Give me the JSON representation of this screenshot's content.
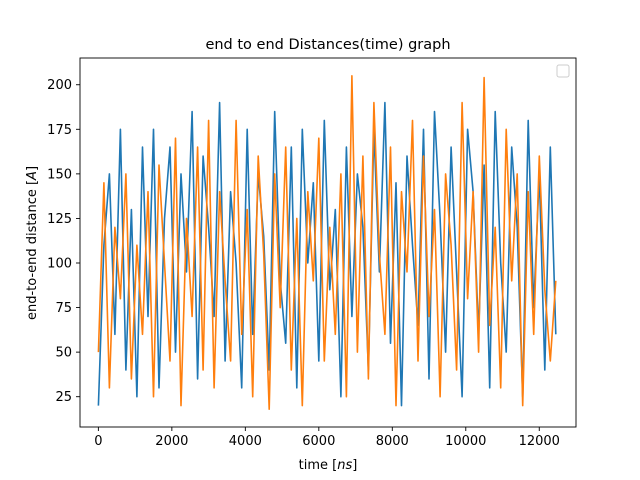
{
  "chart_data": {
    "type": "line",
    "title": "end to end Distances(time) graph",
    "xlabel_text": "time [",
    "xlabel_unit": "ns",
    "xlabel_close": "]",
    "ylabel_text": "end-to-end distance [",
    "ylabel_unit": "A",
    "ylabel_close": "]",
    "xlim": [
      -500,
      13000
    ],
    "ylim": [
      8,
      215
    ],
    "xticks": [
      0,
      2000,
      4000,
      6000,
      8000,
      10000,
      12000
    ],
    "xtick_labels": [
      "0",
      "2000",
      "4000",
      "6000",
      "8000",
      "10000",
      "12000"
    ],
    "yticks": [
      25,
      50,
      75,
      100,
      125,
      150,
      175,
      200
    ],
    "ytick_labels": [
      "25",
      "50",
      "75",
      "100",
      "125",
      "150",
      "175",
      "200"
    ],
    "grid": false,
    "legend": "top-right (empty)",
    "series": [
      {
        "color": "#1f77b4",
        "x": [
          0,
          150,
          300,
          450,
          600,
          750,
          900,
          1050,
          1200,
          1350,
          1500,
          1650,
          1800,
          1950,
          2100,
          2250,
          2400,
          2550,
          2700,
          2850,
          3000,
          3150,
          3300,
          3450,
          3600,
          3750,
          3900,
          4050,
          4200,
          4350,
          4500,
          4650,
          4800,
          4950,
          5100,
          5250,
          5400,
          5550,
          5700,
          5850,
          6000,
          6150,
          6300,
          6450,
          6600,
          6750,
          6900,
          7050,
          7200,
          7350,
          7500,
          7650,
          7800,
          7950,
          8100,
          8250,
          8400,
          8550,
          8700,
          8850,
          9000,
          9150,
          9300,
          9450,
          9600,
          9750,
          9900,
          10050,
          10200,
          10350,
          10500,
          10650,
          10800,
          10950,
          11100,
          11250,
          11400,
          11550,
          11700,
          11850,
          12000,
          12150,
          12300,
          12450
        ],
        "y": [
          20,
          110,
          150,
          60,
          175,
          40,
          130,
          25,
          165,
          70,
          175,
          30,
          125,
          165,
          50,
          150,
          95,
          185,
          35,
          160,
          120,
          70,
          190,
          45,
          140,
          100,
          30,
          175,
          60,
          150,
          115,
          40,
          185,
          90,
          55,
          165,
          30,
          175,
          100,
          145,
          45,
          180,
          85,
          130,
          25,
          165,
          70,
          150,
          120,
          40,
          175,
          95,
          190,
          55,
          145,
          20,
          160,
          110,
          65,
          175,
          35,
          185,
          125,
          50,
          165,
          95,
          25,
          175,
          140,
          60,
          155,
          30,
          185,
          100,
          50,
          165,
          120,
          25,
          180,
          75,
          150,
          40,
          165,
          60
        ]
      },
      {
        "color": "#ff7f0e",
        "x": [
          0,
          150,
          300,
          450,
          600,
          750,
          900,
          1050,
          1200,
          1350,
          1500,
          1650,
          1800,
          1950,
          2100,
          2250,
          2400,
          2550,
          2700,
          2850,
          3000,
          3150,
          3300,
          3450,
          3600,
          3750,
          3900,
          4050,
          4200,
          4350,
          4500,
          4650,
          4800,
          4950,
          5100,
          5250,
          5400,
          5550,
          5700,
          5850,
          6000,
          6150,
          6300,
          6450,
          6600,
          6750,
          6900,
          7050,
          7200,
          7350,
          7500,
          7650,
          7800,
          7950,
          8100,
          8250,
          8400,
          8550,
          8700,
          8850,
          9000,
          9150,
          9300,
          9450,
          9600,
          9750,
          9900,
          10050,
          10200,
          10350,
          10500,
          10650,
          10800,
          10950,
          11100,
          11250,
          11400,
          11550,
          11700,
          11850,
          12000,
          12150,
          12300,
          12450
        ],
        "y": [
          50,
          145,
          30,
          120,
          80,
          150,
          35,
          110,
          60,
          140,
          25,
          155,
          100,
          45,
          170,
          20,
          125,
          70,
          165,
          40,
          180,
          30,
          140,
          90,
          45,
          180,
          60,
          130,
          25,
          160,
          105,
          18,
          150,
          75,
          165,
          40,
          125,
          20,
          140,
          90,
          170,
          45,
          120,
          60,
          150,
          25,
          205,
          50,
          160,
          35,
          190,
          105,
          60,
          165,
          20,
          140,
          95,
          180,
          45,
          160,
          70,
          130,
          25,
          150,
          110,
          40,
          190,
          80,
          140,
          50,
          204,
          65,
          120,
          30,
          175,
          90,
          150,
          20,
          140,
          60,
          160,
          85,
          45,
          90
        ]
      }
    ]
  }
}
